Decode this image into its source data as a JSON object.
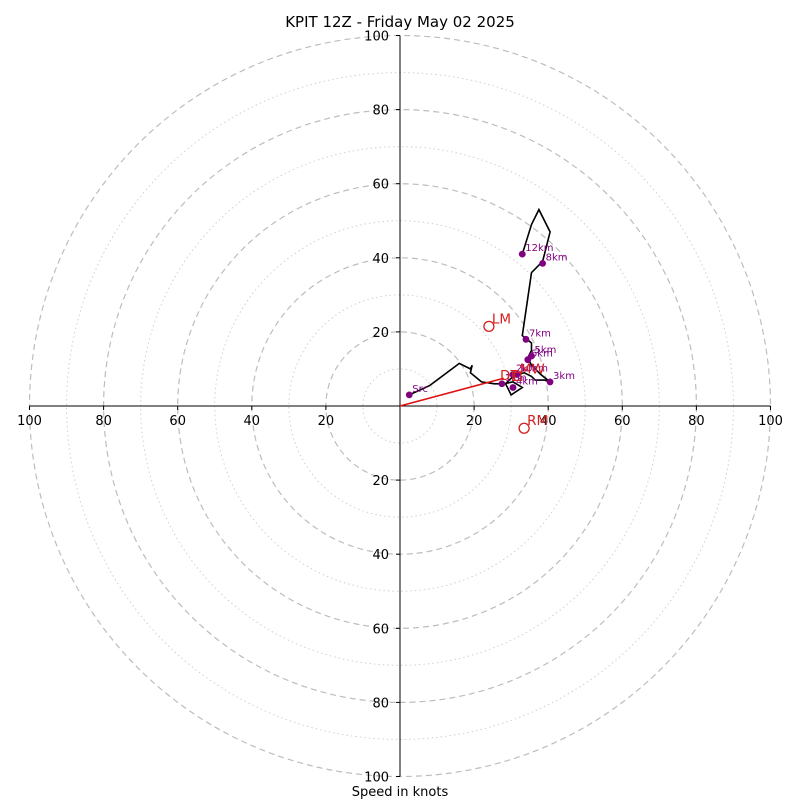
{
  "chart_data": {
    "type": "scatter",
    "subtype": "hodograph",
    "title": "KPIT 12Z - Friday May 02 2025",
    "xlabel": "Speed in knots",
    "ylabel": "",
    "xlim": [
      -100,
      100
    ],
    "ylim": [
      -100,
      100
    ],
    "major_rings": [
      20,
      40,
      60,
      80,
      100
    ],
    "minor_rings": [
      10,
      30,
      50,
      70,
      90
    ],
    "tick_labels": {
      "top": [
        "100",
        "80",
        "60",
        "40",
        "20"
      ],
      "bottom": [
        "20",
        "40",
        "60",
        "80",
        "100"
      ],
      "left": [
        "100",
        "80",
        "60",
        "40",
        "20"
      ],
      "right": [
        "20",
        "40",
        "60",
        "80",
        "100"
      ]
    },
    "grid": true,
    "hodograph_trace": {
      "points": [
        [
          2.5,
          3
        ],
        [
          8,
          5.5
        ],
        [
          16,
          11.5
        ],
        [
          19,
          10
        ],
        [
          19.5,
          11
        ],
        [
          19,
          9
        ],
        [
          22,
          6.5
        ],
        [
          25.5,
          6
        ],
        [
          28,
          6
        ],
        [
          30.5,
          6.5
        ],
        [
          33,
          5
        ],
        [
          31.5,
          4
        ],
        [
          30,
          3
        ],
        [
          29.5,
          4
        ],
        [
          28.5,
          6
        ],
        [
          30.5,
          8
        ],
        [
          33.5,
          9
        ],
        [
          35.5,
          8
        ],
        [
          36.5,
          7
        ],
        [
          39,
          7
        ],
        [
          40.5,
          6.5
        ],
        [
          38,
          8.5
        ],
        [
          36.5,
          10
        ],
        [
          35.5,
          11
        ],
        [
          34.5,
          13
        ],
        [
          35.5,
          15
        ],
        [
          35.5,
          17
        ],
        [
          33,
          19
        ],
        [
          35.5,
          36
        ],
        [
          38.5,
          39
        ],
        [
          40.5,
          47
        ],
        [
          37.5,
          53
        ],
        [
          35.5,
          49
        ],
        [
          33,
          41
        ]
      ],
      "color": "#000000"
    },
    "height_markers": [
      {
        "label": "Src",
        "u": 2.5,
        "v": 3
      },
      {
        "label": "1km",
        "u": 27.5,
        "v": 6
      },
      {
        "label": "2km",
        "u": 30.5,
        "v": 8.5
      },
      {
        "label": "3km",
        "u": 40.5,
        "v": 6.5
      },
      {
        "label": "4km",
        "u": 30.5,
        "v": 5
      },
      {
        "label": "5km",
        "u": 35.5,
        "v": 13.5
      },
      {
        "label": "6km",
        "u": 34.5,
        "v": 12.5
      },
      {
        "label": "7km",
        "u": 34,
        "v": 18
      },
      {
        "label": "8km",
        "u": 38.5,
        "v": 38.5
      },
      {
        "label": "10km",
        "u": 31.5,
        "v": 8.5
      },
      {
        "label": "12km",
        "u": 33,
        "v": 41
      }
    ],
    "marker_color": "#800080",
    "storm_motions": [
      {
        "label": "LM",
        "u": 24,
        "v": 21.5
      },
      {
        "label": "RM",
        "u": 33.5,
        "v": -6
      },
      {
        "label": "MW",
        "u": 31.5,
        "v": 8
      }
    ],
    "storm_motion_color": "#d62020",
    "shear_vector": {
      "from": [
        0,
        0
      ],
      "to": [
        28,
        7.5
      ],
      "color": "#e01010"
    },
    "shear_label": "DT",
    "shear_label_position": [
      27,
      7
    ]
  }
}
